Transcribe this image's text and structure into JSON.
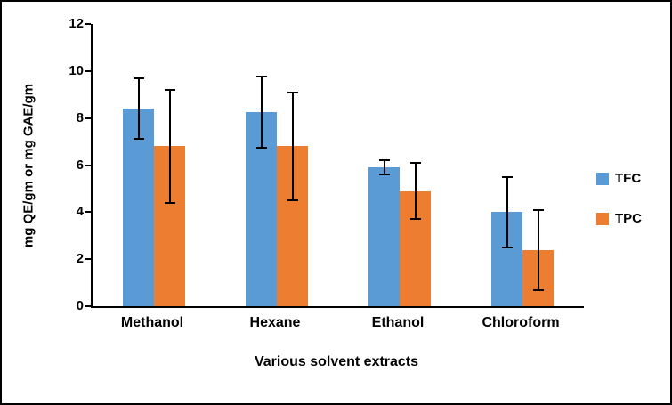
{
  "chart_data": {
    "type": "bar",
    "title": "",
    "categories": [
      "Methanol",
      "Hexane",
      "Ethanol",
      "Chloroform"
    ],
    "series": [
      {
        "name": "TFC",
        "color": "#5B9BD5",
        "values": [
          8.4,
          8.25,
          5.9,
          4.0
        ],
        "errors": [
          1.3,
          1.5,
          0.3,
          1.5
        ]
      },
      {
        "name": "TPC",
        "color": "#ED7D31",
        "values": [
          6.8,
          6.8,
          4.9,
          2.4
        ],
        "errors": [
          2.4,
          2.3,
          1.2,
          1.7
        ]
      }
    ],
    "xlabel": "Various solvent extracts",
    "ylabel": "mg QE/gm or mg GAE/gm",
    "ylim": [
      0,
      12
    ],
    "ytick_step": 2,
    "grid": false,
    "legend_position": "right",
    "axis_color": "#000000",
    "error_bar_color": "#000000"
  }
}
